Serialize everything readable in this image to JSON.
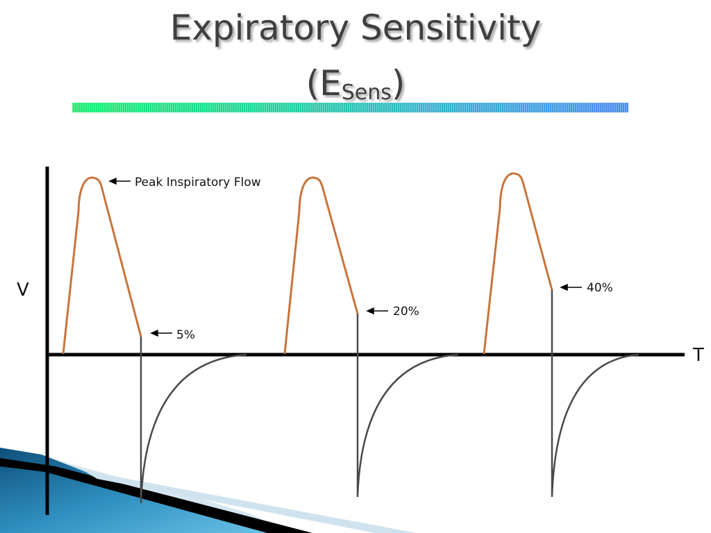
{
  "slide": {
    "title_line1": "Expiratory Sensitivity",
    "title_line2_open": "(E",
    "title_line2_sub": "Sens",
    "title_line2_close": ")"
  },
  "diagram": {
    "axis_y_label": "V",
    "axis_x_label": "T",
    "peak_label": "Peak Inspiratory Flow",
    "thresholds": [
      "5%",
      "20%",
      "40%"
    ],
    "colors": {
      "inspiratory_curve": "#c8743a",
      "expiratory_curve": "#4a4a4a",
      "axes": "#000000",
      "title_text": "#3f3f3f"
    }
  }
}
